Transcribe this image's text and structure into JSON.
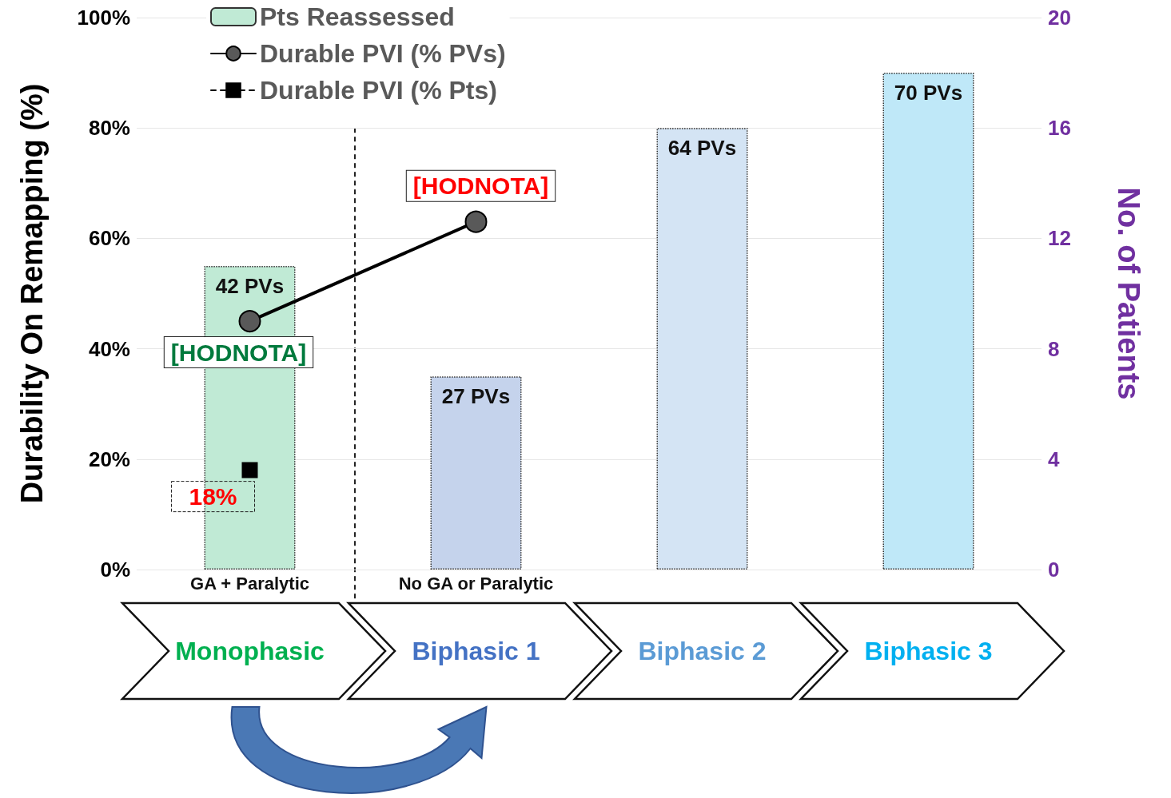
{
  "chart_data": {
    "type": "bar",
    "categories": [
      "Monophasic",
      "Biphasic 1",
      "Biphasic 2",
      "Biphasic 3"
    ],
    "ylabel": "Durability On Remapping (%)",
    "y2label": "No. of Patients",
    "ylim": [
      0,
      100
    ],
    "yticks": [
      {
        "value": 0,
        "label": "0%"
      },
      {
        "value": 20,
        "label": "20%"
      },
      {
        "value": 40,
        "label": "40%"
      },
      {
        "value": 60,
        "label": "60%"
      },
      {
        "value": 80,
        "label": "80%"
      },
      {
        "value": 100,
        "label": "100%"
      }
    ],
    "y2lim": [
      0,
      20
    ],
    "y2ticks": [
      0,
      4,
      8,
      12,
      16,
      20
    ],
    "series": [
      {
        "name": "Pts Reassessed",
        "axis": "y2",
        "values": [
          11,
          7,
          16,
          18
        ],
        "colors": [
          "#c0ead5",
          "#c5d3ec",
          "#d4e4f4",
          "#bfe8f8"
        ]
      },
      {
        "name": "Durable PVI (% PVs)",
        "type": "line",
        "color": "#000000",
        "marker": "circle",
        "line_style": "solid",
        "values": [
          45,
          63,
          null,
          null
        ],
        "value_labels": [
          "[HODNOTA]",
          "[HODNOTA]",
          null,
          null
        ]
      },
      {
        "name": "Durable PVI (% Pts)",
        "type": "line",
        "color": "#000000",
        "marker": "square",
        "line_style": "dashed",
        "values": [
          18,
          null,
          null,
          null
        ],
        "value_labels": [
          "18%",
          null,
          null,
          null
        ]
      }
    ],
    "annotations": [
      "GA + Paralytic",
      "No GA or Paralytic",
      {
        "text": "42 PVs",
        "x": "Monophasic",
        "y": 55
      },
      {
        "text": "27 PVs",
        "x": "Biphasic 1",
        "y": 35
      },
      {
        "text": "64 PVs",
        "x": "Biphasic 2",
        "y": 80
      },
      {
        "text": "70 PVs",
        "x": "Biphasic 3",
        "y": 90
      }
    ],
    "grid": "y",
    "legend": "top"
  }
}
